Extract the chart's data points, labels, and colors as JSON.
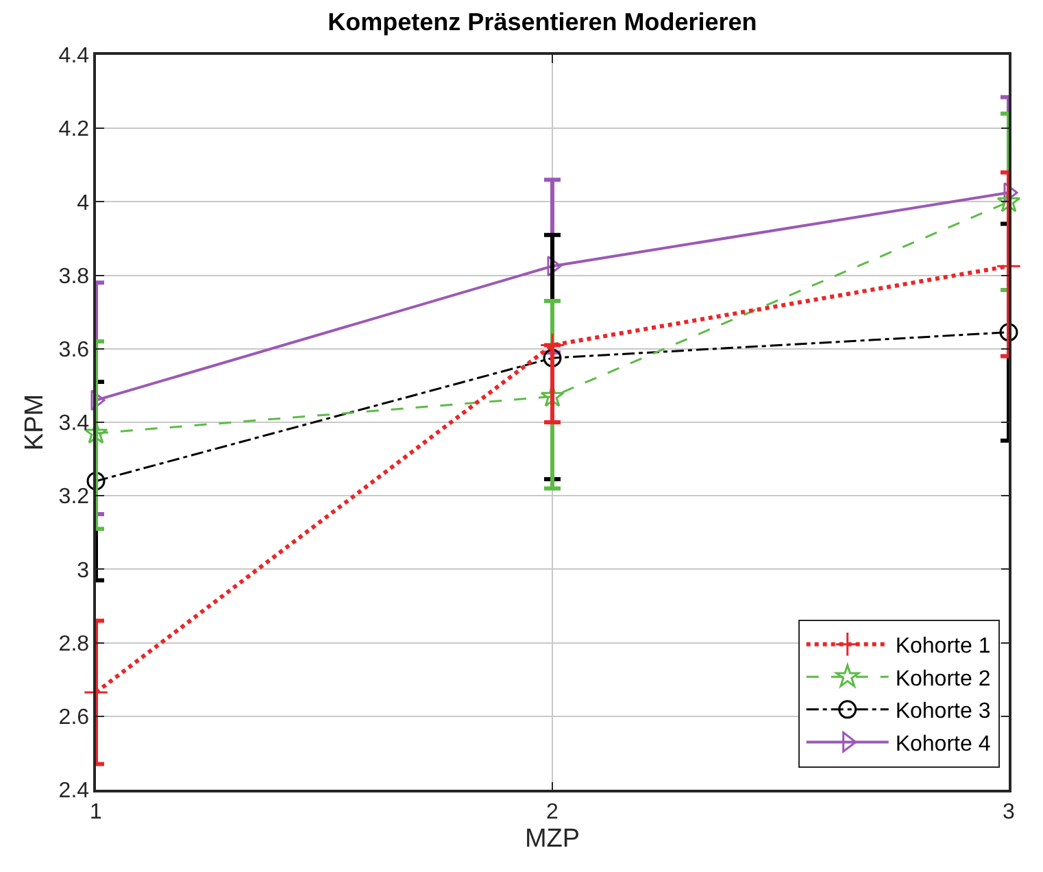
{
  "chart_data": {
    "type": "line",
    "title": "Kompetenz Präsentieren Moderieren",
    "xlabel": "MZP",
    "ylabel": "KPM",
    "x": [
      1,
      2,
      3
    ],
    "xlim": [
      1,
      3
    ],
    "xticks": [
      1,
      2,
      3
    ],
    "ylim": [
      2.4,
      4.4
    ],
    "yticks": [
      2.4,
      2.6,
      2.8,
      3,
      3.2,
      3.4,
      3.6,
      3.8,
      4,
      4.2,
      4.4
    ],
    "grid": true,
    "legend": "bottom right",
    "series": [
      {
        "name": "Kohorte 1",
        "color": "#e8272a",
        "values": [
          2.665,
          3.61,
          3.825
        ],
        "errors": [
          [
            2.47,
            2.86
          ],
          [
            3.4,
            3.61
          ],
          [
            3.58,
            4.08
          ]
        ],
        "marker": "cross",
        "line_style": "dotted"
      },
      {
        "name": "Kohorte 2",
        "color": "#5dbb46",
        "values": [
          3.37,
          3.47,
          4.0
        ],
        "errors": [
          [
            3.11,
            3.62
          ],
          [
            3.22,
            3.73
          ],
          [
            3.76,
            4.24
          ]
        ],
        "marker": "star",
        "line_style": "dashed"
      },
      {
        "name": "Kohorte 3",
        "color": "#000000",
        "values": [
          3.24,
          3.575,
          3.645
        ],
        "errors": [
          [
            2.97,
            3.51
          ],
          [
            3.245,
            3.91
          ],
          [
            3.35,
            3.94
          ]
        ],
        "marker": "circle",
        "line_style": "dashdot"
      },
      {
        "name": "Kohorte 4",
        "color": "#9b59b6",
        "values": [
          3.46,
          3.825,
          4.025
        ],
        "errors": [
          [
            3.15,
            3.78
          ],
          [
            3.59,
            4.06
          ],
          [
            3.76,
            4.285
          ]
        ],
        "marker": "triangle",
        "line_style": "solid"
      }
    ]
  }
}
